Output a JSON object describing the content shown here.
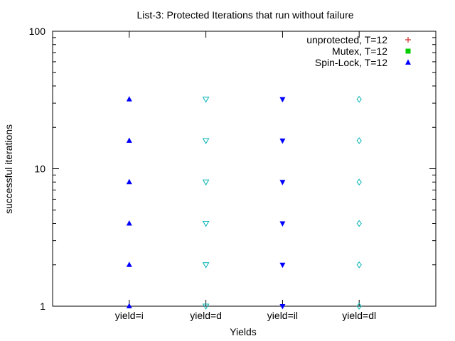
{
  "chart_data": {
    "type": "scatter",
    "title": "List-3: Protected Iterations that run without failure",
    "xlabel": "Yields",
    "ylabel": "successful iterations",
    "y_scale": "log",
    "ylim": [
      1,
      100
    ],
    "y_ticks": [
      {
        "value": 1,
        "label": "1"
      },
      {
        "value": 10,
        "label": "10"
      },
      {
        "value": 100,
        "label": "100"
      }
    ],
    "categories": [
      "yield=i",
      "yield=d",
      "yield=il",
      "yield=dl"
    ],
    "x_range": [
      0,
      5
    ],
    "legend_position": "top-right",
    "grid": false,
    "series": [
      {
        "name": "unprotected, T=12",
        "marker": "plus",
        "color": "#cc0000",
        "points": []
      },
      {
        "name": "Mutex, T=12",
        "marker": "square",
        "color": "#00cc00",
        "points": []
      },
      {
        "name": "Spin-Lock, T=12",
        "marker": "triangle-up",
        "color": "#0000ff",
        "points": [
          {
            "x": "yield=i",
            "y": 1
          },
          {
            "x": "yield=i",
            "y": 2
          },
          {
            "x": "yield=i",
            "y": 4
          },
          {
            "x": "yield=i",
            "y": 8
          },
          {
            "x": "yield=i",
            "y": 16
          },
          {
            "x": "yield=i",
            "y": 32
          }
        ]
      },
      {
        "name": "",
        "marker": "triangle-down-open",
        "color": "#00b3b3",
        "points": [
          {
            "x": "yield=d",
            "y": 1
          },
          {
            "x": "yield=d",
            "y": 2
          },
          {
            "x": "yield=d",
            "y": 4
          },
          {
            "x": "yield=d",
            "y": 8
          },
          {
            "x": "yield=d",
            "y": 16
          },
          {
            "x": "yield=d",
            "y": 32
          }
        ]
      },
      {
        "name": "",
        "marker": "triangle-down",
        "color": "#0000ff",
        "points": [
          {
            "x": "yield=il",
            "y": 1
          },
          {
            "x": "yield=il",
            "y": 2
          },
          {
            "x": "yield=il",
            "y": 4
          },
          {
            "x": "yield=il",
            "y": 8
          },
          {
            "x": "yield=il",
            "y": 16
          },
          {
            "x": "yield=il",
            "y": 32
          }
        ]
      },
      {
        "name": "",
        "marker": "diamond-open",
        "color": "#00b3b3",
        "points": [
          {
            "x": "yield=dl",
            "y": 1
          },
          {
            "x": "yield=dl",
            "y": 2
          },
          {
            "x": "yield=dl",
            "y": 4
          },
          {
            "x": "yield=dl",
            "y": 8
          },
          {
            "x": "yield=dl",
            "y": 16
          },
          {
            "x": "yield=dl",
            "y": 32
          }
        ]
      }
    ]
  }
}
